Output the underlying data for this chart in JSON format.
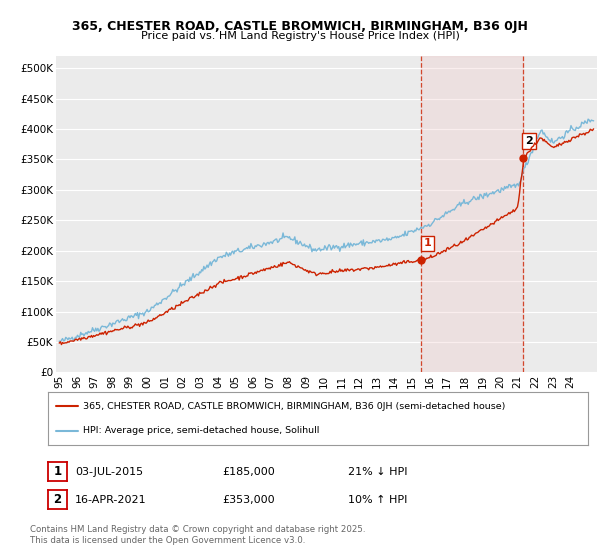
{
  "title1": "365, CHESTER ROAD, CASTLE BROMWICH, BIRMINGHAM, B36 0JH",
  "title2": "Price paid vs. HM Land Registry's House Price Index (HPI)",
  "ylim": [
    0,
    520000
  ],
  "yticks": [
    0,
    50000,
    100000,
    150000,
    200000,
    250000,
    300000,
    350000,
    400000,
    450000,
    500000
  ],
  "ytick_labels": [
    "£0",
    "£50K",
    "£100K",
    "£150K",
    "£200K",
    "£250K",
    "£300K",
    "£350K",
    "£400K",
    "£450K",
    "£500K"
  ],
  "xlim_start": 1994.8,
  "xlim_end": 2025.5,
  "background_color": "#ffffff",
  "plot_bg_color": "#ebebeb",
  "grid_color": "#ffffff",
  "hpi_color": "#7ab8d8",
  "price_color": "#cc2200",
  "marker1_date": 2015.5,
  "marker1_price": 185000,
  "marker2_date": 2021.28,
  "marker2_price": 353000,
  "vline_color": "#cc2200",
  "legend_line1": "365, CHESTER ROAD, CASTLE BROMWICH, BIRMINGHAM, B36 0JH (semi-detached house)",
  "legend_line2": "HPI: Average price, semi-detached house, Solihull",
  "note1_label": "1",
  "note1_date": "03-JUL-2015",
  "note1_price": "£185,000",
  "note1_hpi": "21% ↓ HPI",
  "note2_label": "2",
  "note2_date": "16-APR-2021",
  "note2_price": "£353,000",
  "note2_hpi": "10% ↑ HPI",
  "footer": "Contains HM Land Registry data © Crown copyright and database right 2025.\nThis data is licensed under the Open Government Licence v3.0."
}
